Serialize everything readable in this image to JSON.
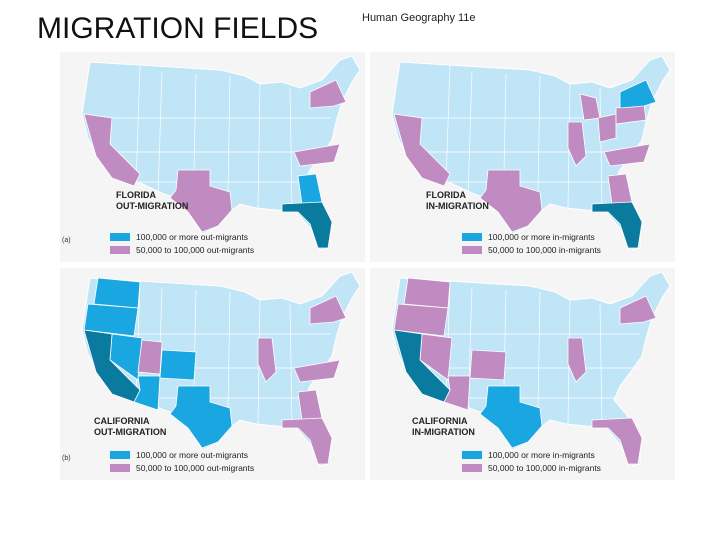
{
  "header": {
    "title": "MIGRATION FIELDS",
    "subtitle": "Human Geography 11e"
  },
  "panels": [
    {
      "title_lines": [
        "FLORIDA",
        "OUT-MIGRATION"
      ],
      "legend": [
        "100,000 or more out-migrants",
        "50,000 to 100,000 out-migrants"
      ],
      "label": "(a)"
    },
    {
      "title_lines": [
        "FLORIDA",
        "IN-MIGRATION"
      ],
      "legend": [
        "100,000 or more in-migrants",
        "50,000 to 100,000 in-migrants"
      ]
    },
    {
      "title_lines": [
        "CALIFORNIA",
        "OUT-MIGRATION"
      ],
      "legend": [
        "100,000 or more out-migrants",
        "50,000 to 100,000 out-migrants"
      ],
      "label": "(b)"
    },
    {
      "title_lines": [
        "CALIFORNIA",
        "IN-MIGRATION"
      ],
      "legend": [
        "100,000 or more in-migrants",
        "50,000 to 100,000 in-migrants"
      ]
    }
  ]
}
